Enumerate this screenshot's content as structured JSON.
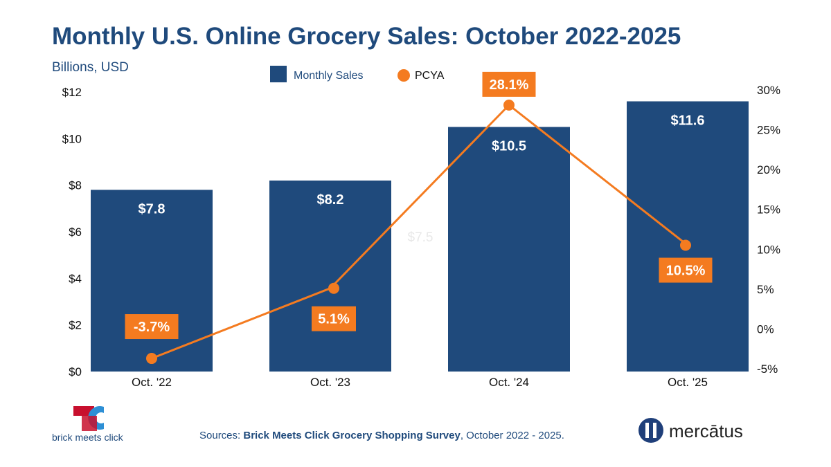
{
  "chart_data": {
    "type": "bar",
    "title": "Monthly U.S. Online Grocery Sales: October 2022-2025",
    "subtitle": "Billions, USD",
    "categories": [
      "Oct. '22",
      "Oct. '23",
      "Oct. '24",
      "Oct. '25"
    ],
    "series": [
      {
        "name": "Monthly Sales",
        "type": "bar",
        "axis": "left",
        "values": [
          7.8,
          8.2,
          10.5,
          11.6
        ],
        "labels": [
          "$7.8",
          "$8.2",
          "$10.5",
          "$11.6"
        ],
        "color": "#1f4a7c"
      },
      {
        "name": "PCYA",
        "type": "line",
        "axis": "right",
        "values": [
          -3.7,
          5.1,
          28.1,
          10.5
        ],
        "labels": [
          "-3.7%",
          "5.1%",
          "28.1%",
          "10.5%"
        ],
        "color": "#f47b20"
      }
    ],
    "left_axis": {
      "ylim": [
        0,
        12
      ],
      "ticks": [
        "$0",
        "$2",
        "$4",
        "$6",
        "$8",
        "$10",
        "$12"
      ]
    },
    "right_axis": {
      "ylim": [
        -5,
        30
      ],
      "ticks": [
        "-5%",
        "0%",
        "5%",
        "10%",
        "15%",
        "20%",
        "25%",
        "30%"
      ]
    },
    "ghost_annotation": "$7.5",
    "grid": false,
    "legend": "top-center"
  },
  "footer": {
    "source_prefix": "Sources: ",
    "source_bold": "Brick Meets Click Grocery Shopping Survey",
    "source_suffix": ", October 2022 - 2025.",
    "logo_left": "brick meets click",
    "logo_right": "mercātus"
  }
}
